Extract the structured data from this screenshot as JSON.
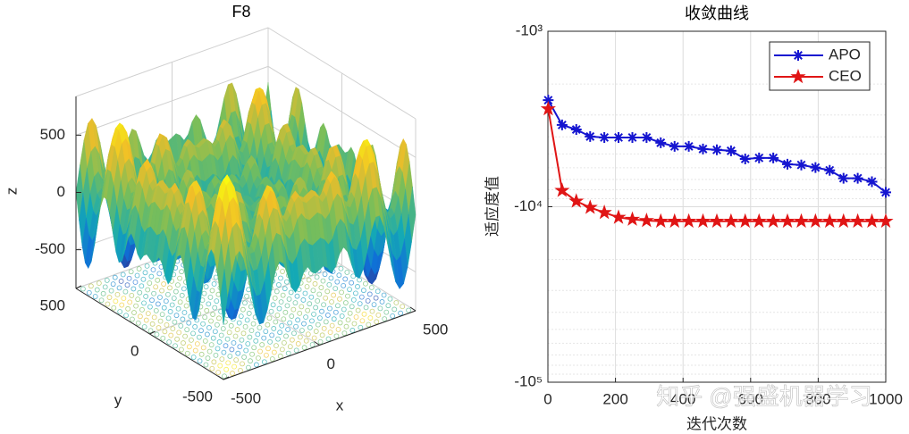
{
  "chart_data": [
    {
      "type": "surface3d",
      "title": "F8",
      "xlabel": "x",
      "ylabel": "y",
      "zlabel": "z",
      "xlim": [
        -500,
        500
      ],
      "ylim": [
        -500,
        500
      ],
      "zlim": [
        -838,
        838
      ],
      "xticks": [
        -500,
        0,
        500
      ],
      "yticks": [
        -500,
        0,
        500
      ],
      "zticks": [
        -500,
        0,
        500
      ],
      "grid": true
    },
    {
      "type": "line",
      "title": "收敛曲线",
      "xlabel": "迭代次数",
      "ylabel": "适应度值",
      "x": [
        1,
        42,
        84,
        125,
        167,
        209,
        250,
        292,
        334,
        375,
        417,
        459,
        500,
        542,
        584,
        625,
        667,
        709,
        750,
        792,
        834,
        875,
        917,
        959,
        1000
      ],
      "series": [
        {
          "name": "APO",
          "color": "#1515d0",
          "marker": "asterisk",
          "values": [
            -2470,
            -3420,
            -3630,
            -3980,
            -4030,
            -4030,
            -4030,
            -4030,
            -4320,
            -4530,
            -4530,
            -4690,
            -4740,
            -4800,
            -5340,
            -5270,
            -5270,
            -5720,
            -5780,
            -5980,
            -6200,
            -6880,
            -6880,
            -7200,
            -8280
          ]
        },
        {
          "name": "CEO",
          "color": "#e01515",
          "marker": "star",
          "values": [
            -2770,
            -8080,
            -9300,
            -10100,
            -10800,
            -11500,
            -11800,
            -12000,
            -12100,
            -12100,
            -12100,
            -12100,
            -12100,
            -12100,
            -12100,
            -12100,
            -12100,
            -12100,
            -12100,
            -12100,
            -12100,
            -12100,
            -12100,
            -12100,
            -12100
          ]
        }
      ],
      "xlim": [
        0,
        1000
      ],
      "xticks": [
        0,
        200,
        400,
        600,
        800,
        1000
      ],
      "ylim": [
        -100000,
        -1000
      ],
      "log_scale_y": true,
      "yticks": [
        {
          "value": -100000,
          "label": "-10⁵"
        },
        {
          "value": -10000,
          "label": "-10⁴"
        },
        {
          "value": -1000,
          "label": "-10³"
        }
      ],
      "grid": true,
      "minor_grid": true,
      "legend": "northeast",
      "watermark": "知乎 @强盛机器学习"
    }
  ]
}
